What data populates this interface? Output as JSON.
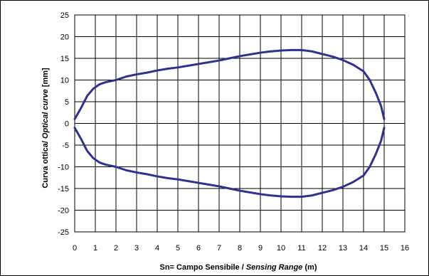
{
  "chart_data": {
    "type": "line",
    "xlabel": {
      "prefix": "Sn= Campo Sensibile / ",
      "italic": "Sensing Range",
      "suffix": "  (m)"
    },
    "ylabel": {
      "prefix": "Curva ottica/ ",
      "italic": "Optical curve",
      "suffix": "  [mm]"
    },
    "xlim": [
      0,
      16
    ],
    "ylim": [
      -25,
      25
    ],
    "xticks": [
      0,
      1,
      2,
      3,
      4,
      5,
      6,
      7,
      8,
      9,
      10,
      11,
      12,
      13,
      14,
      15,
      16
    ],
    "yticks": [
      25,
      20,
      15,
      10,
      5,
      0,
      -5,
      -10,
      -15,
      -20,
      -25
    ],
    "grid": true,
    "line_color": "#2e3192",
    "series": [
      {
        "x": [
          0,
          0.3,
          0.6,
          0.9,
          1.2,
          1.5,
          2,
          2.5,
          3,
          3.5,
          4,
          4.5,
          5,
          5.5,
          6,
          6.5,
          7,
          7.5,
          8,
          8.5,
          9,
          9.5,
          10,
          10.5,
          11,
          11.5,
          12,
          12.5,
          13,
          13.5,
          14,
          14.3,
          14.6,
          14.85,
          15
        ],
        "values": [
          1,
          3.5,
          6.3,
          8,
          9,
          9.5,
          10,
          10.8,
          11.3,
          11.7,
          12.2,
          12.6,
          12.9,
          13.3,
          13.7,
          14.1,
          14.5,
          15,
          15.5,
          15.9,
          16.3,
          16.6,
          16.8,
          16.9,
          16.9,
          16.6,
          16,
          15.4,
          14.6,
          13.5,
          12,
          10,
          7,
          4,
          1
        ]
      },
      {
        "x": [
          0,
          0.3,
          0.6,
          0.9,
          1.2,
          1.5,
          2,
          2.5,
          3,
          3.5,
          4,
          4.5,
          5,
          5.5,
          6,
          6.5,
          7,
          7.5,
          8,
          8.5,
          9,
          9.5,
          10,
          10.5,
          11,
          11.5,
          12,
          12.5,
          13,
          13.5,
          14,
          14.3,
          14.6,
          14.85,
          15
        ],
        "values": [
          -1,
          -3.5,
          -6.3,
          -8,
          -9,
          -9.5,
          -10,
          -10.8,
          -11.3,
          -11.7,
          -12.2,
          -12.6,
          -12.9,
          -13.3,
          -13.7,
          -14.1,
          -14.5,
          -15,
          -15.5,
          -15.9,
          -16.3,
          -16.6,
          -16.8,
          -16.9,
          -16.9,
          -16.6,
          -16,
          -15.4,
          -14.6,
          -13.5,
          -12,
          -10,
          -7,
          -4,
          -1
        ]
      }
    ]
  }
}
